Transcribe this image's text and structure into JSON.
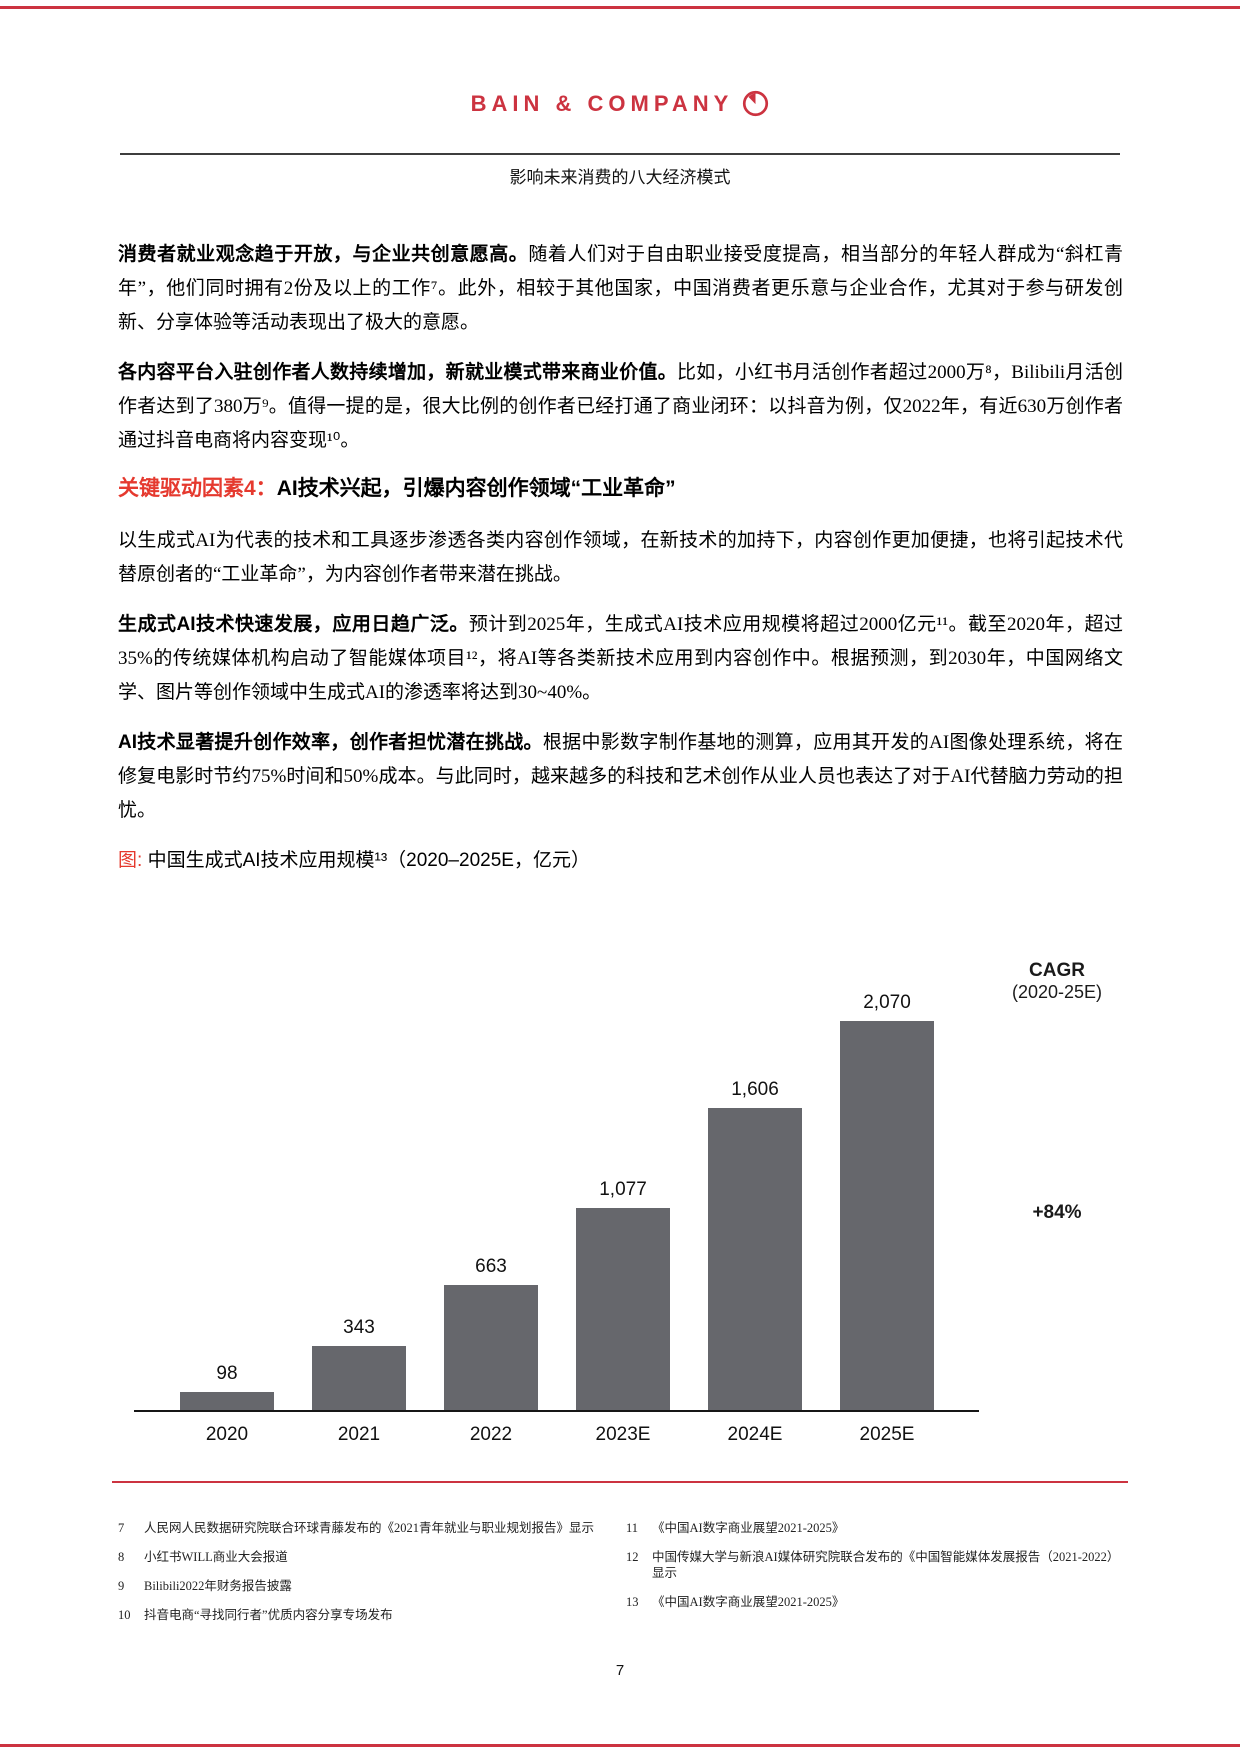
{
  "page": {
    "logo_text": "BAIN & COMPANY",
    "subtitle": "影响未来消费的八大经济模式",
    "page_number": "7"
  },
  "colors": {
    "brand_red": "#CC3340",
    "heading_red": "#E5392E",
    "bar_gray": "#66676C"
  },
  "paragraphs": [
    {
      "lead": "消费者就业观念趋于开放，与企业共创意愿高。",
      "rest": "随着人们对于自由职业接受度提高，相当部分的年轻人群成为“斜杠青年”，他们同时拥有2份及以上的工作⁷。此外，相较于其他国家，中国消费者更乐意与企业合作，尤其对于参与研发创新、分享体验等活动表现出了极大的意愿。"
    },
    {
      "lead": "各内容平台入驻创作者人数持续增加，新就业模式带来商业价值。",
      "rest": "比如，小红书月活创作者超过2000万⁸，Bilibili月活创作者达到了380万⁹。值得一提的是，很大比例的创作者已经打通了商业闭环：以抖音为例，仅2022年，有近630万创作者通过抖音电商将内容变现¹⁰。"
    }
  ],
  "section_heading": {
    "label": "关键驱动因素4：",
    "title": "AI技术兴起，引爆内容创作领域“工业革命”"
  },
  "paragraphs2": [
    {
      "lead": "",
      "rest": "以生成式AI为代表的技术和工具逐步渗透各类内容创作领域，在新技术的加持下，内容创作更加便捷，也将引起技术代替原创者的“工业革命”，为内容创作者带来潜在挑战。"
    },
    {
      "lead": "生成式AI技术快速发展，应用日趋广泛。",
      "rest": "预计到2025年，生成式AI技术应用规模将超过2000亿元¹¹。截至2020年，超过35%的传统媒体机构启动了智能媒体项目¹²，将AI等各类新技术应用到内容创作中。根据预测，到2030年，中国网络文学、图片等创作领域中生成式AI的渗透率将达到30~40%。"
    },
    {
      "lead": "AI技术显著提升创作效率，创作者担忧潜在挑战。",
      "rest": "根据中影数字制作基地的测算，应用其开发的AI图像处理系统，将在修复电影时节约75%时间和50%成本。与此同时，越来越多的科技和艺术创作从业人员也表达了对于AI代替脑力劳动的担忧。"
    }
  ],
  "figure": {
    "caption_label": "图:",
    "caption_text": "中国生成式AI技术应用规模¹³（2020–2025E，亿元）",
    "cagr_title": "CAGR",
    "cagr_period": "(2020-25E)",
    "cagr_value": "+84%"
  },
  "chart_data": {
    "type": "bar",
    "title": "中国生成式AI技术应用规模（2020–2025E，亿元）",
    "categories": [
      "2020",
      "2021",
      "2022",
      "2023E",
      "2024E",
      "2025E"
    ],
    "values": [
      98,
      343,
      663,
      1077,
      1606,
      2070
    ],
    "value_labels": [
      "98",
      "343",
      "663",
      "1,077",
      "1,606",
      "2,070"
    ],
    "xlabel": "",
    "ylabel": "亿元",
    "ylim": [
      0,
      2200
    ],
    "grid": false,
    "legend": "none",
    "bar_color": "#66676C",
    "annotations": {
      "cagr_title": "CAGR",
      "cagr_period": "(2020-25E)",
      "cagr_value": "+84%"
    }
  },
  "footnotes": {
    "left": [
      {
        "num": "7",
        "text": "人民网人民数据研究院联合环球青藤发布的《2021青年就业与职业规划报告》显示"
      },
      {
        "num": "8",
        "text": "小红书WILL商业大会报道"
      },
      {
        "num": "9",
        "text": "Bilibili2022年财务报告披露"
      },
      {
        "num": "10",
        "text": "抖音电商“寻找同行者”优质内容分享专场发布"
      }
    ],
    "right": [
      {
        "num": "11",
        "text": "《中国AI数字商业展望2021-2025》"
      },
      {
        "num": "12",
        "text": "中国传媒大学与新浪AI媒体研究院联合发布的《中国智能媒体发展报告（2021-2022）显示"
      },
      {
        "num": "13",
        "text": "《中国AI数字商业展望2021-2025》"
      }
    ]
  }
}
